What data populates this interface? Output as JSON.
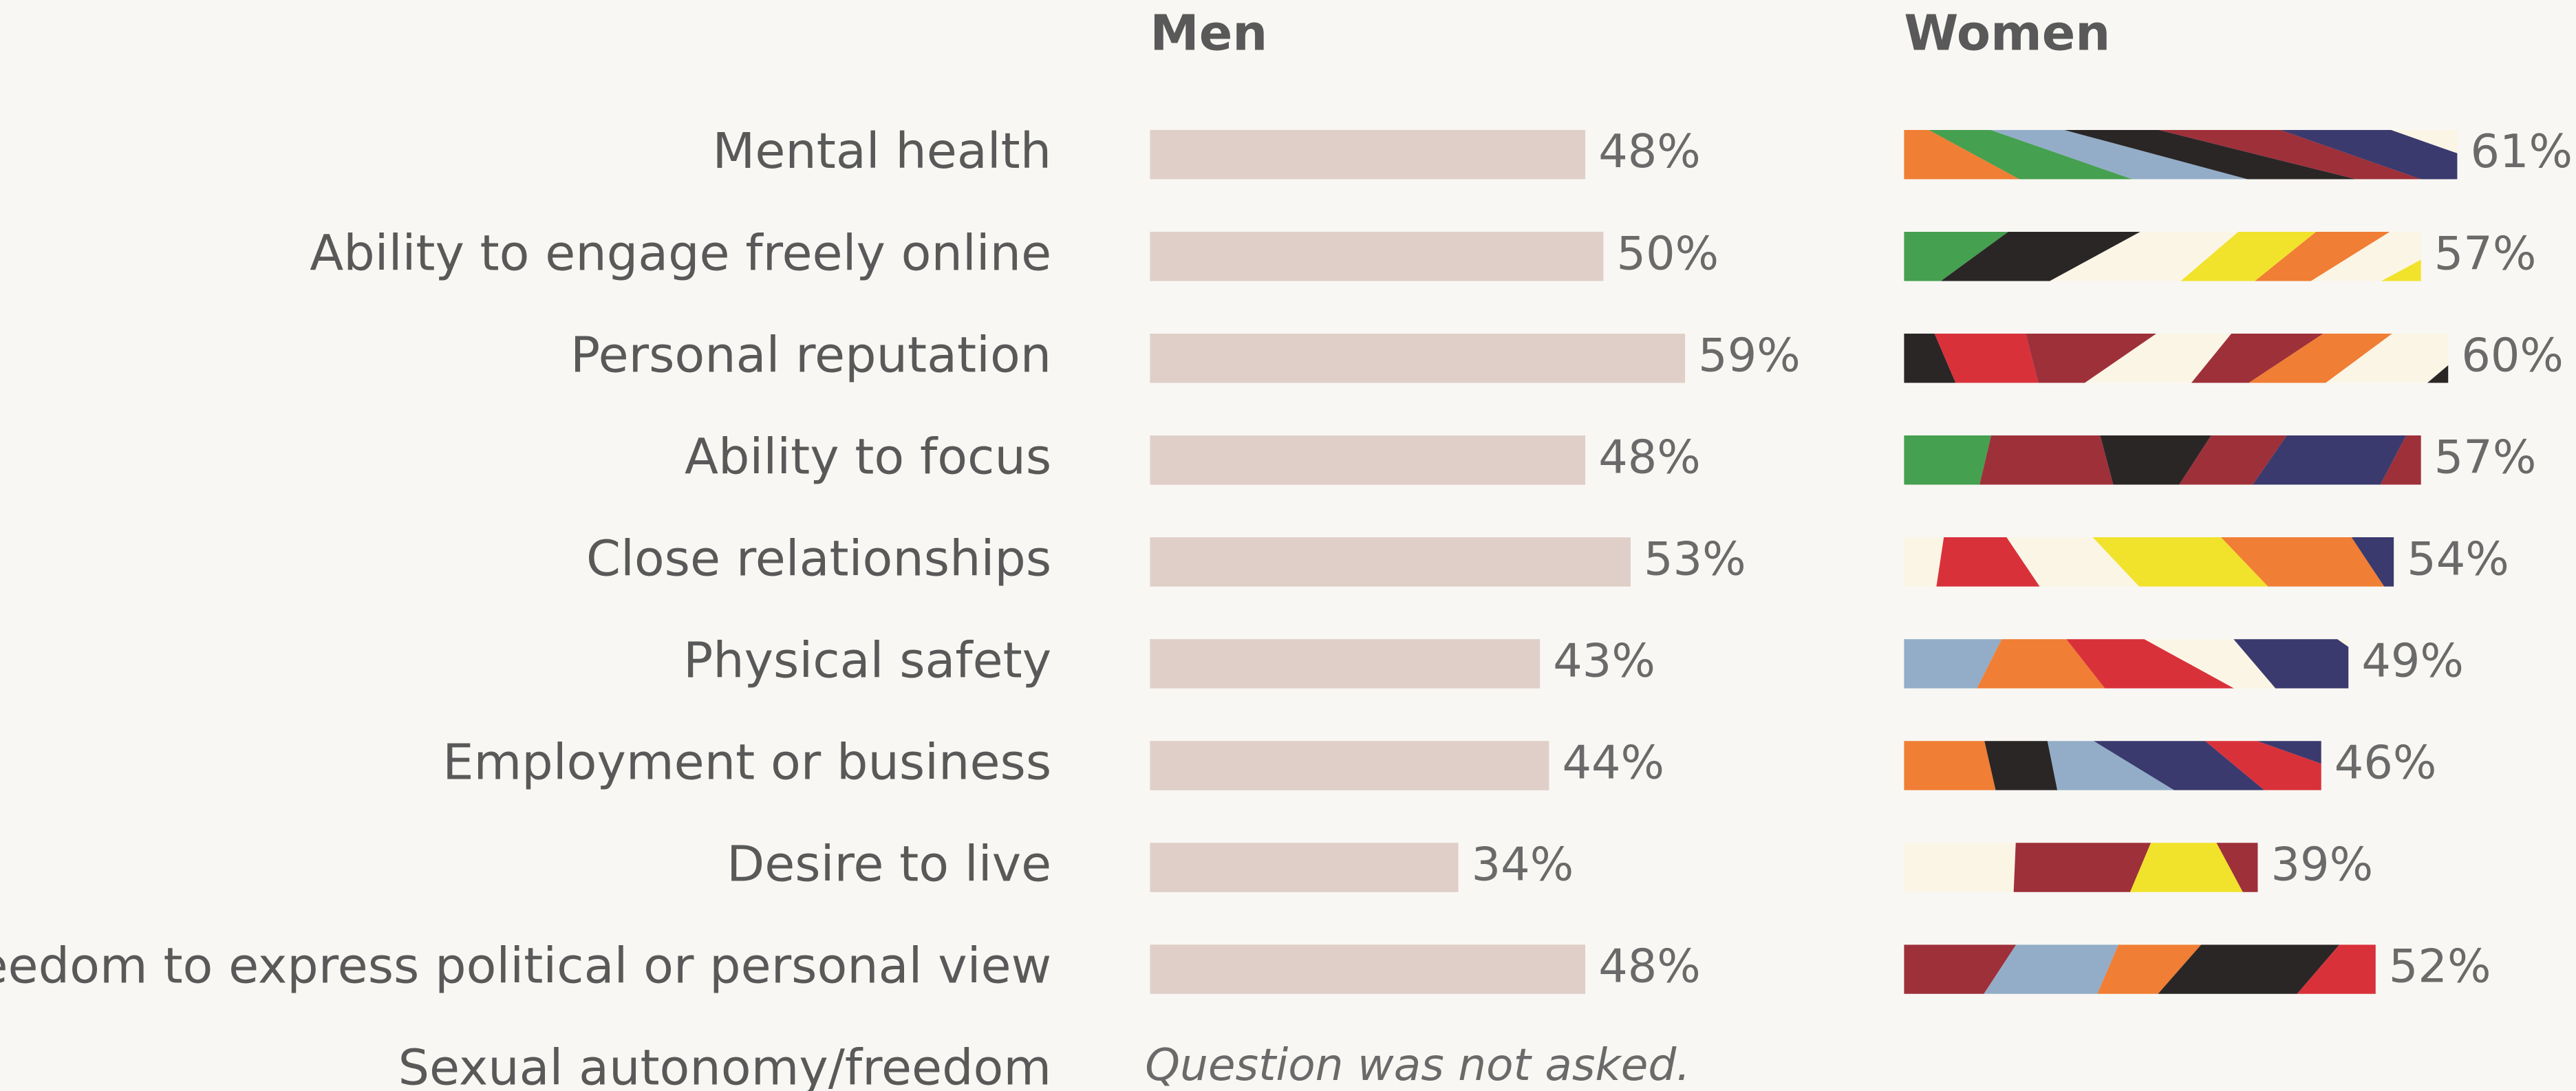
{
  "chart_data": {
    "type": "bar",
    "categories": [
      "Mental health",
      "Ability to engage freely online",
      "Personal reputation",
      "Ability to focus",
      "Close relationships",
      "Physical safety",
      "Employment or business",
      "Desire to live",
      "Freedom to express political or personal view",
      "Sexual autonomy/freedom"
    ],
    "series": [
      {
        "name": "Men",
        "color": "#e0cfc9",
        "values": [
          48,
          50,
          59,
          48,
          53,
          43,
          44,
          34,
          48,
          null
        ],
        "value_labels": [
          "48%",
          "50%",
          "59%",
          "48%",
          "53%",
          "43%",
          "44%",
          "34%",
          "48%",
          null
        ]
      },
      {
        "name": "Women",
        "colors": [
          "#3a3a6e",
          "#d9313a",
          "#f07e34",
          "#9e3039",
          "#45a04f",
          "#2a2626",
          "#93adc8",
          "#f1e22c",
          "#fbf5e6"
        ],
        "values": [
          61,
          57,
          60,
          57,
          54,
          49,
          46,
          39,
          52,
          null
        ],
        "value_labels": [
          "61%",
          "57%",
          "60%",
          "57%",
          "54%",
          "49%",
          "46%",
          "39%",
          "52%",
          null
        ]
      }
    ],
    "xlim": [
      0,
      100
    ],
    "note": "Question was not asked."
  }
}
